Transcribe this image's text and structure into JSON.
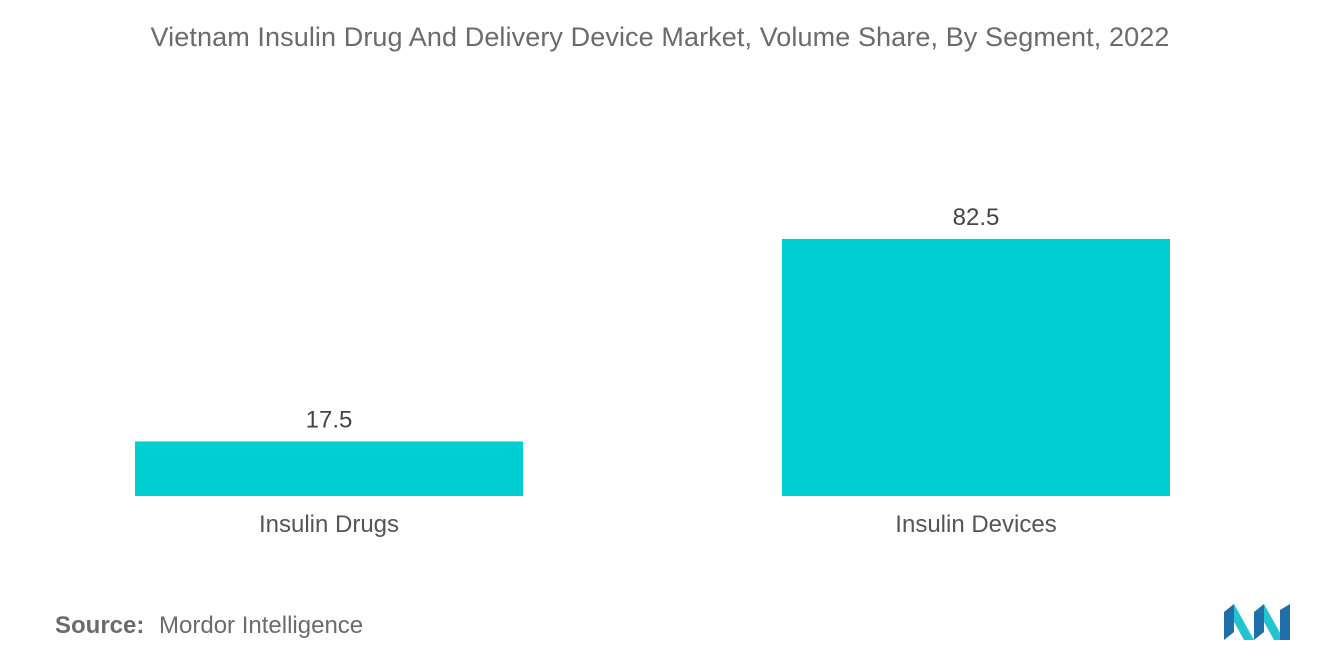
{
  "chart_data": {
    "type": "bar",
    "title": "Vietnam Insulin Drug And Delivery Device Market, Volume Share, By Segment, 2022",
    "categories": [
      "Insulin Drugs",
      "Insulin Devices"
    ],
    "values": [
      17.5,
      82.5
    ],
    "value_labels": [
      "17.5",
      "82.5"
    ],
    "xlabel": "",
    "ylabel": "",
    "ylim": [
      0,
      100
    ],
    "grid": false,
    "bar_color": "#00cfd1"
  },
  "source": {
    "label": "Source:",
    "text": "Mordor Intelligence"
  },
  "logo": {
    "icon": "mordor-intelligence-logo-icon",
    "colors": [
      "#1f6fa8",
      "#25c3cf"
    ]
  }
}
